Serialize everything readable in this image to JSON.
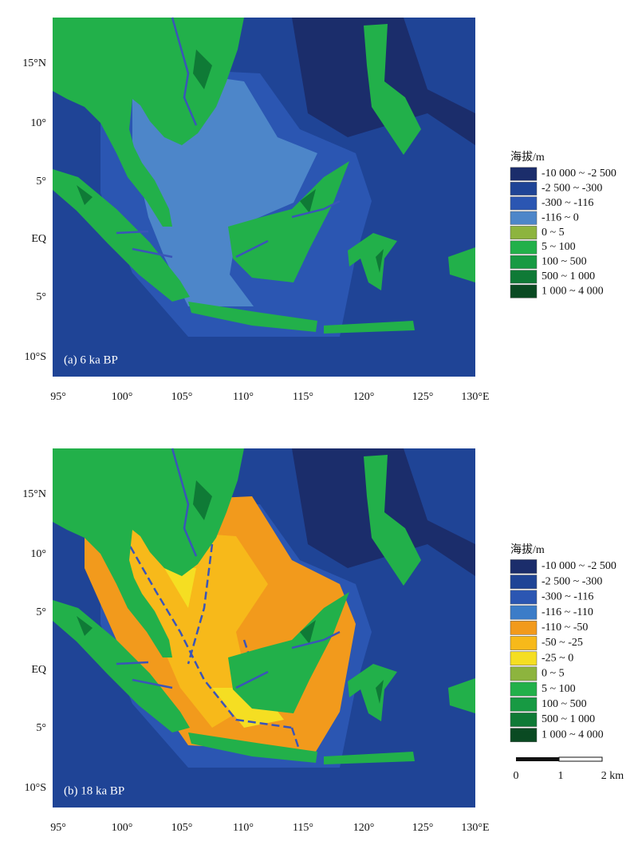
{
  "panels": [
    {
      "label": "(a) 6 ka BP",
      "y_ticks": [
        "15°N",
        "10°",
        "5°",
        "EQ",
        "5°",
        "10°S"
      ],
      "x_ticks": [
        "95°",
        "100°",
        "105°",
        "110°",
        "115°",
        "120°",
        "125°",
        "130°E"
      ],
      "legend": {
        "title": "海拔/m",
        "items": [
          {
            "label": "-10 000 ~ -2 500",
            "color": "#1b2d6b"
          },
          {
            "label": "-2 500 ~ -300",
            "color": "#1f4496"
          },
          {
            "label": "-300 ~ -116",
            "color": "#2b56b2"
          },
          {
            "label": "-116 ~ 0",
            "color": "#4d86c9"
          },
          {
            "label": "0 ~ 5",
            "color": "#8db43e"
          },
          {
            "label": "5 ~ 100",
            "color": "#22b04a"
          },
          {
            "label": "100 ~ 500",
            "color": "#179a43"
          },
          {
            "label": "500 ~ 1 000",
            "color": "#0f7a36"
          },
          {
            "label": "1 000 ~ 4 000",
            "color": "#0a4a22"
          }
        ]
      }
    },
    {
      "label": "(b) 18 ka BP",
      "y_ticks": [
        "15°N",
        "10°",
        "5°",
        "EQ",
        "5°",
        "10°S"
      ],
      "x_ticks": [
        "95°",
        "100°",
        "105°",
        "110°",
        "115°",
        "120°",
        "125°",
        "130°E"
      ],
      "legend": {
        "title": "海拔/m",
        "items": [
          {
            "label": "-10 000 ~ -2 500",
            "color": "#1b2d6b"
          },
          {
            "label": "-2 500 ~ -300",
            "color": "#1f4496"
          },
          {
            "label": "-300 ~ -116",
            "color": "#2b56b2"
          },
          {
            "label": "-116 ~ -110",
            "color": "#3b7cc8"
          },
          {
            "label": "-110 ~ -50",
            "color": "#f29a1c"
          },
          {
            "label": "-50 ~ -25",
            "color": "#f7b91a"
          },
          {
            "label": "-25 ~ 0",
            "color": "#f5de22"
          },
          {
            "label": "0 ~ 5",
            "color": "#8db43e"
          },
          {
            "label": "5 ~ 100",
            "color": "#22b04a"
          },
          {
            "label": "100 ~ 500",
            "color": "#179a43"
          },
          {
            "label": "500 ~ 1 000",
            "color": "#0f7a36"
          },
          {
            "label": "1 000 ~ 4 000",
            "color": "#0a4a22"
          }
        ]
      }
    }
  ],
  "scale_bar": {
    "labels": [
      "0",
      "1",
      "2 km"
    ]
  }
}
